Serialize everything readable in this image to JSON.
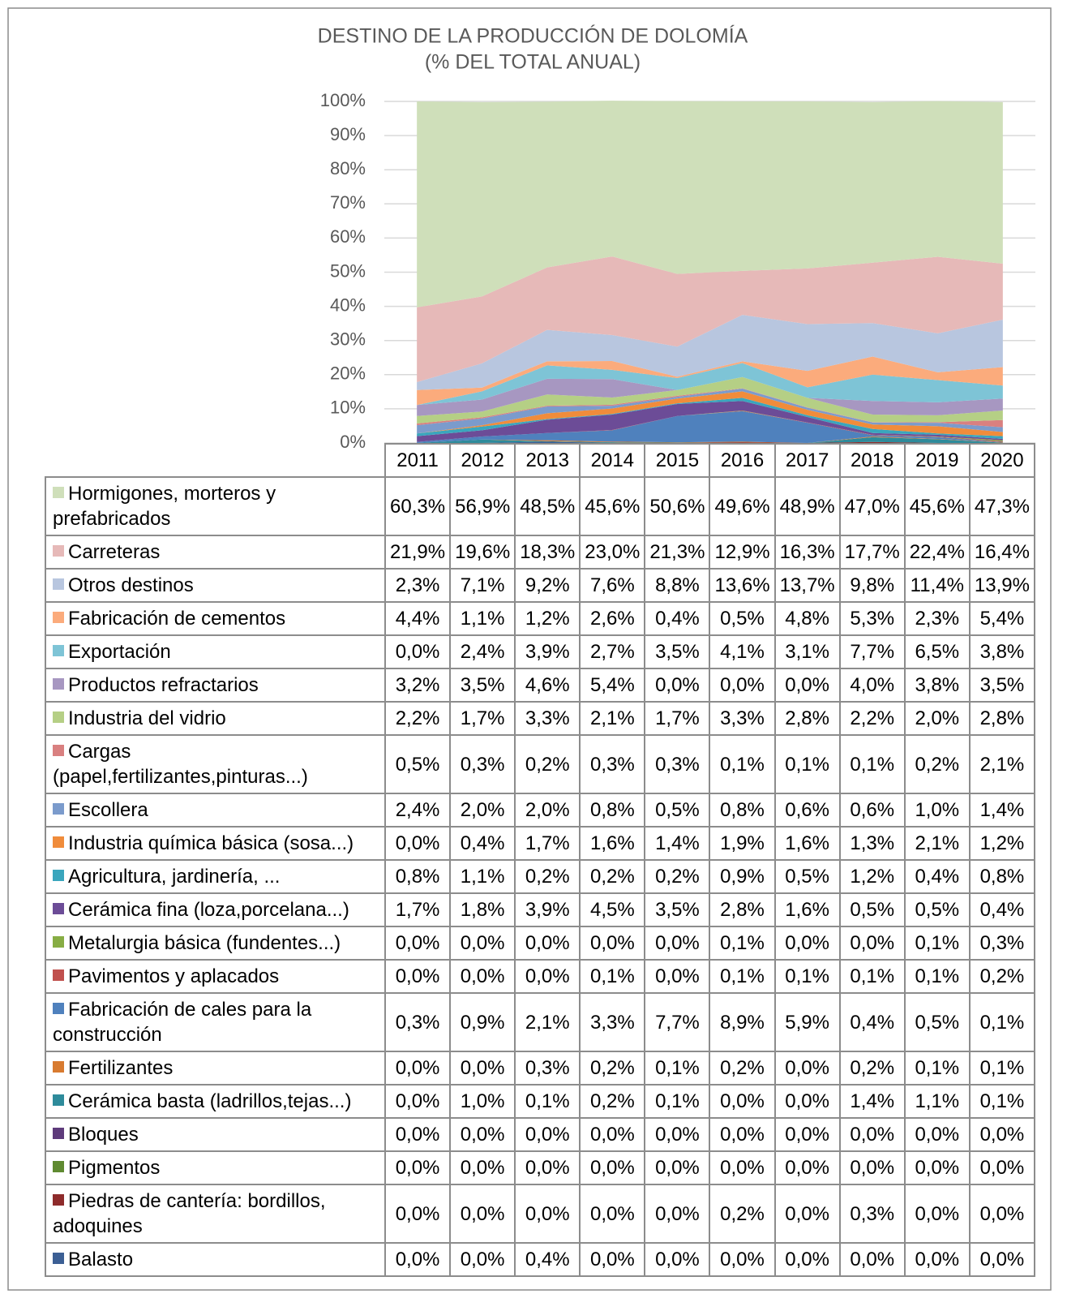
{
  "chart_data": {
    "type": "area",
    "stacked": true,
    "title": "DESTINO DE LA PRODUCCIÓN DE DOLOMÍA",
    "subtitle": "(% DEL TOTAL ANUAL)",
    "categories": [
      "2011",
      "2012",
      "2013",
      "2014",
      "2015",
      "2016",
      "2017",
      "2018",
      "2019",
      "2020"
    ],
    "ylim": [
      0,
      100
    ],
    "yticks": [
      {
        "value": 0,
        "label": "0%"
      },
      {
        "value": 10,
        "label": "10%"
      },
      {
        "value": 20,
        "label": "20%"
      },
      {
        "value": 30,
        "label": "30%"
      },
      {
        "value": 40,
        "label": "40%"
      },
      {
        "value": 50,
        "label": "50%"
      },
      {
        "value": 60,
        "label": "60%"
      },
      {
        "value": 70,
        "label": "70%"
      },
      {
        "value": 80,
        "label": "80%"
      },
      {
        "value": 90,
        "label": "90%"
      },
      {
        "value": 100,
        "label": "100%"
      }
    ],
    "grid": true,
    "series": [
      {
        "name": "Hormigones, morteros y prefabricados",
        "color": "#cfdfba",
        "values": [
          60.3,
          56.9,
          48.5,
          45.6,
          50.6,
          49.6,
          48.9,
          47.0,
          45.6,
          47.3
        ],
        "value_labels": [
          "60,3%",
          "56,9%",
          "48,5%",
          "45,6%",
          "50,6%",
          "49,6%",
          "48,9%",
          "47,0%",
          "45,6%",
          "47,3%"
        ]
      },
      {
        "name": "Carreteras",
        "color": "#e6b9b8",
        "values": [
          21.9,
          19.6,
          18.3,
          23.0,
          21.3,
          12.9,
          16.3,
          17.7,
          22.4,
          16.4
        ],
        "value_labels": [
          "21,9%",
          "19,6%",
          "18,3%",
          "23,0%",
          "21,3%",
          "12,9%",
          "16,3%",
          "17,7%",
          "22,4%",
          "16,4%"
        ]
      },
      {
        "name": "Otros destinos",
        "color": "#b8c6df",
        "values": [
          2.3,
          7.1,
          9.2,
          7.6,
          8.8,
          13.6,
          13.7,
          9.8,
          11.4,
          13.9
        ],
        "value_labels": [
          "2,3%",
          "7,1%",
          "9,2%",
          "7,6%",
          "8,8%",
          "13,6%",
          "13,7%",
          "9,8%",
          "11,4%",
          "13,9%"
        ]
      },
      {
        "name": "Fabricación de cementos",
        "color": "#fbab7c",
        "values": [
          4.4,
          1.1,
          1.2,
          2.6,
          0.4,
          0.5,
          4.8,
          5.3,
          2.3,
          5.4
        ],
        "value_labels": [
          "4,4%",
          "1,1%",
          "1,2%",
          "2,6%",
          "0,4%",
          "0,5%",
          "4,8%",
          "5,3%",
          "2,3%",
          "5,4%"
        ]
      },
      {
        "name": "Exportación",
        "color": "#7ec4d6",
        "values": [
          0.0,
          2.4,
          3.9,
          2.7,
          3.5,
          4.1,
          3.1,
          7.7,
          6.5,
          3.8
        ],
        "value_labels": [
          "0,0%",
          "2,4%",
          "3,9%",
          "2,7%",
          "3,5%",
          "4,1%",
          "3,1%",
          "7,7%",
          "6,5%",
          "3,8%"
        ]
      },
      {
        "name": "Productos refractarios",
        "color": "#a797c1",
        "values": [
          3.2,
          3.5,
          4.6,
          5.4,
          0.0,
          0.0,
          0.0,
          4.0,
          3.8,
          3.5
        ],
        "value_labels": [
          "3,2%",
          "3,5%",
          "4,6%",
          "5,4%",
          "0,0%",
          "0,0%",
          "0,0%",
          "4,0%",
          "3,8%",
          "3,5%"
        ]
      },
      {
        "name": "Industria del vidrio",
        "color": "#b5cf85",
        "values": [
          2.2,
          1.7,
          3.3,
          2.1,
          1.7,
          3.3,
          2.8,
          2.2,
          2.0,
          2.8
        ],
        "value_labels": [
          "2,2%",
          "1,7%",
          "3,3%",
          "2,1%",
          "1,7%",
          "3,3%",
          "2,8%",
          "2,2%",
          "2,0%",
          "2,8%"
        ]
      },
      {
        "name": "Cargas (papel,fertilizantes,pinturas...)",
        "color": "#d98080",
        "values": [
          0.5,
          0.3,
          0.2,
          0.3,
          0.3,
          0.1,
          0.1,
          0.1,
          0.2,
          2.1
        ],
        "value_labels": [
          "0,5%",
          "0,3%",
          "0,2%",
          "0,3%",
          "0,3%",
          "0,1%",
          "0,1%",
          "0,1%",
          "0,2%",
          "2,1%"
        ]
      },
      {
        "name": "Escollera",
        "color": "#7b9bcc",
        "values": [
          2.4,
          2.0,
          2.0,
          0.8,
          0.5,
          0.8,
          0.6,
          0.6,
          1.0,
          1.4
        ],
        "value_labels": [
          "2,4%",
          "2,0%",
          "2,0%",
          "0,8%",
          "0,5%",
          "0,8%",
          "0,6%",
          "0,6%",
          "1,0%",
          "1,4%"
        ]
      },
      {
        "name": "Industria química básica (sosa...)",
        "color": "#f08c3b",
        "values": [
          0.0,
          0.4,
          1.7,
          1.6,
          1.4,
          1.9,
          1.6,
          1.3,
          2.1,
          1.2
        ],
        "value_labels": [
          "0,0%",
          "0,4%",
          "1,7%",
          "1,6%",
          "1,4%",
          "1,9%",
          "1,6%",
          "1,3%",
          "2,1%",
          "1,2%"
        ]
      },
      {
        "name": "Agricultura, jardinería, ...",
        "color": "#3aa6bd",
        "values": [
          0.8,
          1.1,
          0.2,
          0.2,
          0.2,
          0.9,
          0.5,
          1.2,
          0.4,
          0.8
        ],
        "value_labels": [
          "0,8%",
          "1,1%",
          "0,2%",
          "0,2%",
          "0,2%",
          "0,9%",
          "0,5%",
          "1,2%",
          "0,4%",
          "0,8%"
        ]
      },
      {
        "name": "Cerámica fina (loza,porcelana...)",
        "color": "#6c4c97",
        "values": [
          1.7,
          1.8,
          3.9,
          4.5,
          3.5,
          2.8,
          1.6,
          0.5,
          0.5,
          0.4
        ],
        "value_labels": [
          "1,7%",
          "1,8%",
          "3,9%",
          "4,5%",
          "3,5%",
          "2,8%",
          "1,6%",
          "0,5%",
          "0,5%",
          "0,4%"
        ]
      },
      {
        "name": "Metalurgia básica (fundentes...)",
        "color": "#87ad44",
        "values": [
          0.0,
          0.0,
          0.0,
          0.0,
          0.0,
          0.1,
          0.0,
          0.0,
          0.1,
          0.3
        ],
        "value_labels": [
          "0,0%",
          "0,0%",
          "0,0%",
          "0,0%",
          "0,0%",
          "0,1%",
          "0,0%",
          "0,0%",
          "0,1%",
          "0,3%"
        ]
      },
      {
        "name": "Pavimentos y aplacados",
        "color": "#c0504d",
        "values": [
          0.0,
          0.0,
          0.0,
          0.1,
          0.0,
          0.1,
          0.1,
          0.1,
          0.1,
          0.2
        ],
        "value_labels": [
          "0,0%",
          "0,0%",
          "0,0%",
          "0,1%",
          "0,0%",
          "0,1%",
          "0,1%",
          "0,1%",
          "0,1%",
          "0,2%"
        ]
      },
      {
        "name": "Fabricación de cales para la construcción",
        "color": "#4f81bd",
        "values": [
          0.3,
          0.9,
          2.1,
          3.3,
          7.7,
          8.9,
          5.9,
          0.4,
          0.5,
          0.1
        ],
        "value_labels": [
          "0,3%",
          "0,9%",
          "2,1%",
          "3,3%",
          "7,7%",
          "8,9%",
          "5,9%",
          "0,4%",
          "0,5%",
          "0,1%"
        ]
      },
      {
        "name": "Fertilizantes",
        "color": "#d87b30",
        "values": [
          0.0,
          0.0,
          0.3,
          0.2,
          0.1,
          0.2,
          0.0,
          0.2,
          0.1,
          0.1
        ],
        "value_labels": [
          "0,0%",
          "0,0%",
          "0,3%",
          "0,2%",
          "0,1%",
          "0,2%",
          "0,0%",
          "0,2%",
          "0,1%",
          "0,1%"
        ]
      },
      {
        "name": "Cerámica basta (ladrillos,tejas...)",
        "color": "#2e8b9b",
        "values": [
          0.0,
          1.0,
          0.1,
          0.2,
          0.1,
          0.0,
          0.0,
          1.4,
          1.1,
          0.1
        ],
        "value_labels": [
          "0,0%",
          "1,0%",
          "0,1%",
          "0,2%",
          "0,1%",
          "0,0%",
          "0,0%",
          "1,4%",
          "1,1%",
          "0,1%"
        ]
      },
      {
        "name": "Bloques",
        "color": "#5e3b7b",
        "values": [
          0.0,
          0.0,
          0.0,
          0.0,
          0.0,
          0.0,
          0.0,
          0.0,
          0.0,
          0.0
        ],
        "value_labels": [
          "0,0%",
          "0,0%",
          "0,0%",
          "0,0%",
          "0,0%",
          "0,0%",
          "0,0%",
          "0,0%",
          "0,0%",
          "0,0%"
        ]
      },
      {
        "name": "Pigmentos",
        "color": "#5f8a31",
        "values": [
          0.0,
          0.0,
          0.0,
          0.0,
          0.0,
          0.0,
          0.0,
          0.0,
          0.0,
          0.0
        ],
        "value_labels": [
          "0,0%",
          "0,0%",
          "0,0%",
          "0,0%",
          "0,0%",
          "0,0%",
          "0,0%",
          "0,0%",
          "0,0%",
          "0,0%"
        ]
      },
      {
        "name": "Piedras de cantería: bordillos, adoquines",
        "color": "#8e2b2b",
        "values": [
          0.0,
          0.0,
          0.0,
          0.0,
          0.0,
          0.2,
          0.0,
          0.3,
          0.0,
          0.0
        ],
        "value_labels": [
          "0,0%",
          "0,0%",
          "0,0%",
          "0,0%",
          "0,0%",
          "0,2%",
          "0,0%",
          "0,3%",
          "0,0%",
          "0,0%"
        ]
      },
      {
        "name": "Balasto",
        "color": "#3c5f94",
        "values": [
          0.0,
          0.0,
          0.4,
          0.0,
          0.0,
          0.0,
          0.0,
          0.0,
          0.0,
          0.0
        ],
        "value_labels": [
          "0,0%",
          "0,0%",
          "0,4%",
          "0,0%",
          "0,0%",
          "0,0%",
          "0,0%",
          "0,0%",
          "0,0%",
          "0,0%"
        ]
      }
    ]
  }
}
